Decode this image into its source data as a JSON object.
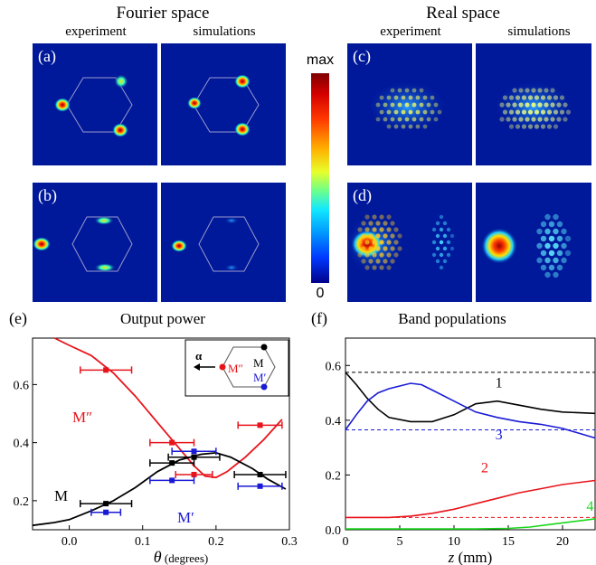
{
  "headers": {
    "fourier": "Fourier space",
    "real": "Real space",
    "experiment": "experiment",
    "simulations": "simulations"
  },
  "panels": {
    "a": "(a)",
    "b": "(b)",
    "c": "(c)",
    "d": "(d)"
  },
  "colorbar": {
    "max": "max",
    "min": "0"
  },
  "colors": {
    "red": "#e8141b",
    "black": "#000000",
    "blue": "#1a1ad6",
    "green": "#1ad61a",
    "panel_bg": "#00189a"
  },
  "chart_data": [
    {
      "panel": "(e)",
      "type": "line",
      "title": "Output power",
      "xlabel": "θ (degrees)",
      "ylabel": "",
      "xlim": [
        -0.05,
        0.3
      ],
      "ylim": [
        0.1,
        0.76
      ],
      "xticks": [
        "0.0",
        "0.1",
        "0.2",
        "0.3"
      ],
      "yticks": [
        "0.2",
        "0.4",
        "0.6"
      ],
      "series": [
        {
          "name": "M″",
          "color": "#e8141b",
          "curve": [
            [
              -0.02,
              0.76
            ],
            [
              0.0,
              0.735
            ],
            [
              0.03,
              0.7
            ],
            [
              0.06,
              0.64
            ],
            [
              0.09,
              0.56
            ],
            [
              0.12,
              0.47
            ],
            [
              0.15,
              0.38
            ],
            [
              0.17,
              0.32
            ],
            [
              0.185,
              0.285
            ],
            [
              0.2,
              0.28
            ],
            [
              0.215,
              0.3
            ],
            [
              0.24,
              0.35
            ],
            [
              0.265,
              0.41
            ],
            [
              0.29,
              0.48
            ]
          ],
          "points": [
            [
              0.05,
              0.65,
              0.035
            ],
            [
              0.14,
              0.4,
              0.03
            ],
            [
              0.17,
              0.29,
              0.025
            ],
            [
              0.26,
              0.46,
              0.03
            ]
          ]
        },
        {
          "name": "M",
          "color": "#000000",
          "curve": [
            [
              -0.05,
              0.115
            ],
            [
              -0.02,
              0.125
            ],
            [
              0.0,
              0.135
            ],
            [
              0.03,
              0.165
            ],
            [
              0.06,
              0.2
            ],
            [
              0.09,
              0.245
            ],
            [
              0.12,
              0.3
            ],
            [
              0.15,
              0.34
            ],
            [
              0.18,
              0.36
            ],
            [
              0.2,
              0.365
            ],
            [
              0.22,
              0.35
            ],
            [
              0.25,
              0.31
            ],
            [
              0.27,
              0.275
            ],
            [
              0.295,
              0.24
            ]
          ],
          "points": [
            [
              0.05,
              0.19,
              0.035
            ],
            [
              0.14,
              0.33,
              0.03
            ],
            [
              0.17,
              0.35,
              0.035
            ],
            [
              0.26,
              0.29,
              0.035
            ]
          ]
        },
        {
          "name": "M′",
          "color": "#1a1ad6",
          "curve": [],
          "points": [
            [
              0.05,
              0.16,
              0.02
            ],
            [
              0.14,
              0.27,
              0.03
            ],
            [
              0.17,
              0.37,
              0.03
            ],
            [
              0.26,
              0.25,
              0.03
            ]
          ]
        }
      ],
      "inset": {
        "alpha": "α",
        "m": "M",
        "m2": "M″",
        "m1": "M′"
      }
    },
    {
      "panel": "(f)",
      "type": "line",
      "title": "Band populations",
      "xlabel": "z (mm)",
      "ylabel": "",
      "xlim": [
        0,
        23
      ],
      "ylim": [
        0,
        0.7
      ],
      "xticks": [
        "0",
        "5",
        "10",
        "15",
        "20"
      ],
      "yticks": [
        "0.0",
        "0.2",
        "0.4",
        "0.6"
      ],
      "reference_lines": [
        {
          "y": 0.575,
          "color": "#000000"
        },
        {
          "y": 0.365,
          "color": "#1a1ad6"
        },
        {
          "y": 0.045,
          "color": "#e8141b"
        }
      ],
      "series": [
        {
          "name": "1",
          "color": "#000000",
          "curve": [
            [
              0,
              0.575
            ],
            [
              1,
              0.53
            ],
            [
              2,
              0.48
            ],
            [
              3,
              0.44
            ],
            [
              4,
              0.41
            ],
            [
              6,
              0.395
            ],
            [
              8,
              0.395
            ],
            [
              10,
              0.42
            ],
            [
              12,
              0.46
            ],
            [
              14,
              0.47
            ],
            [
              16,
              0.455
            ],
            [
              18,
              0.44
            ],
            [
              20,
              0.43
            ],
            [
              23,
              0.425
            ]
          ]
        },
        {
          "name": "3",
          "color": "#1a1ad6",
          "curve": [
            [
              0,
              0.365
            ],
            [
              1,
              0.42
            ],
            [
              2,
              0.47
            ],
            [
              3,
              0.5
            ],
            [
              4,
              0.515
            ],
            [
              5,
              0.525
            ],
            [
              6,
              0.535
            ],
            [
              7,
              0.53
            ],
            [
              8,
              0.51
            ],
            [
              10,
              0.47
            ],
            [
              12,
              0.43
            ],
            [
              14,
              0.41
            ],
            [
              16,
              0.395
            ],
            [
              18,
              0.385
            ],
            [
              20,
              0.37
            ],
            [
              23,
              0.335
            ]
          ]
        },
        {
          "name": "2",
          "color": "#e8141b",
          "curve": [
            [
              0,
              0.045
            ],
            [
              4,
              0.045
            ],
            [
              6,
              0.05
            ],
            [
              8,
              0.06
            ],
            [
              10,
              0.075
            ],
            [
              12,
              0.095
            ],
            [
              14,
              0.115
            ],
            [
              16,
              0.135
            ],
            [
              18,
              0.15
            ],
            [
              20,
              0.165
            ],
            [
              23,
              0.18
            ]
          ]
        },
        {
          "name": "4",
          "color": "#1ad61a",
          "curve": [
            [
              0,
              0.003
            ],
            [
              12,
              0.003
            ],
            [
              15,
              0.005
            ],
            [
              17,
              0.01
            ],
            [
              19,
              0.02
            ],
            [
              21,
              0.03
            ],
            [
              23,
              0.04
            ]
          ]
        }
      ]
    }
  ]
}
